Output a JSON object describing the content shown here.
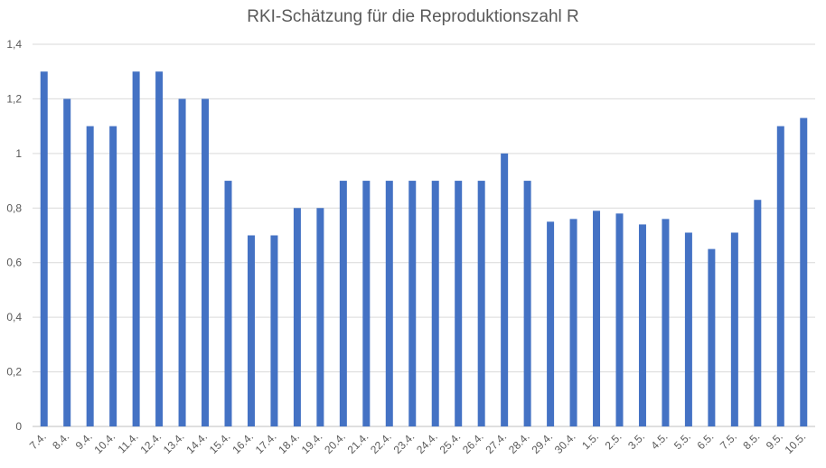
{
  "chart_data": {
    "type": "bar",
    "title": "RKI-Schätzung für die Reproduktionszahl R",
    "xlabel": "",
    "ylabel": "",
    "ylim": [
      0,
      1.4
    ],
    "yticks": [
      "0",
      "0,2",
      "0,4",
      "0,6",
      "0,8",
      "1",
      "1,2",
      "1,4"
    ],
    "ytick_values": [
      0,
      0.2,
      0.4,
      0.6,
      0.8,
      1.0,
      1.2,
      1.4
    ],
    "grid": true,
    "legend": "none",
    "bar_color": "#4472c4",
    "categories": [
      "7.4.",
      "8.4.",
      "9.4.",
      "10.4.",
      "11.4.",
      "12.4.",
      "13.4.",
      "14.4.",
      "15.4.",
      "16.4.",
      "17.4.",
      "18.4.",
      "19.4.",
      "20.4.",
      "21.4.",
      "22.4.",
      "23.4.",
      "24.4.",
      "25.4.",
      "26.4.",
      "27.4.",
      "28.4.",
      "29.4.",
      "30.4.",
      "1.5.",
      "2.5.",
      "3.5.",
      "4.5.",
      "5.5.",
      "6.5.",
      "7.5.",
      "8.5.",
      "9.5.",
      "10.5."
    ],
    "values": [
      1.3,
      1.2,
      1.1,
      1.1,
      1.3,
      1.3,
      1.2,
      1.2,
      0.9,
      0.7,
      0.7,
      0.8,
      0.8,
      0.9,
      0.9,
      0.9,
      0.9,
      0.9,
      0.9,
      0.9,
      1.0,
      0.9,
      0.75,
      0.76,
      0.79,
      0.78,
      0.74,
      0.76,
      0.71,
      0.65,
      0.71,
      0.83,
      1.1,
      1.13
    ]
  }
}
